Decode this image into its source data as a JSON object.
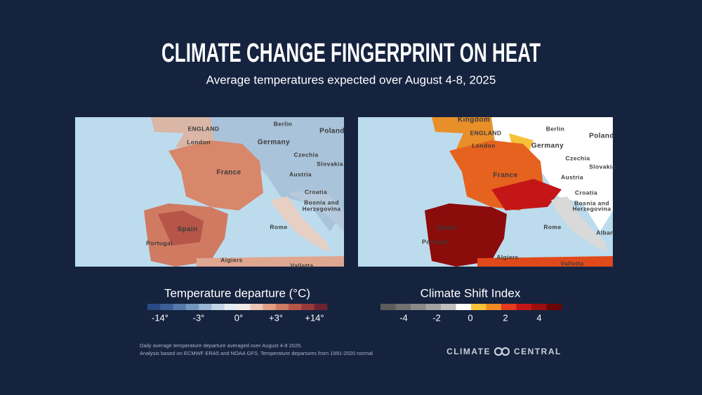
{
  "header": {
    "title": "CLIMATE CHANGE FINGERPRINT ON HEAT",
    "subtitle": "Average temperatures expected over August 4-8, 2025"
  },
  "maps": [
    {
      "labels": [
        "ENGLAND",
        "London",
        "Berlin",
        "Poland",
        "Germany",
        "Czechia",
        "Slovakia",
        "France",
        "Austria",
        "Croatia",
        "Bosnia and",
        "Herzegovina",
        "Spain",
        "Portugal",
        "Rome",
        "Algiers",
        "Valletta"
      ]
    },
    {
      "labels": [
        "Kingdom",
        "ENGLAND",
        "London",
        "Berlin",
        "Poland",
        "Germany",
        "Czechia",
        "Slovakia",
        "France",
        "Austria",
        "Croatia",
        "Bosnia and",
        "Herzegovina",
        "Spain",
        "Portugal",
        "Rome",
        "Algiers",
        "Alban",
        "Valletta"
      ]
    }
  ],
  "legends": [
    {
      "title": "Temperature departure (°C)",
      "colors": [
        "#2a4a86",
        "#3d5f98",
        "#5479ab",
        "#7396c0",
        "#9bb6d4",
        "#c2d4e6",
        "#e4ecf3",
        "#f3ebe6",
        "#ecc6b4",
        "#df9f86",
        "#cf7a62",
        "#b85549",
        "#983a3c",
        "#6e2330"
      ],
      "ticks": [
        "-14°",
        "-3°",
        "0°",
        "+3°",
        "+14°"
      ]
    },
    {
      "title": "Climate Shift Index",
      "colors": [
        "#5c5c5c",
        "#727272",
        "#8a8a8a",
        "#a3a3a3",
        "#bfbfbf",
        "#ffffff",
        "#f8c43a",
        "#f08a22",
        "#e43a1e",
        "#c41616",
        "#9c0d0d",
        "#6a0606"
      ],
      "ticks": [
        "-4",
        "-2",
        "0",
        "2",
        "4"
      ]
    }
  ],
  "footnote": [
    "Daily average temperature departure averaged over August 4-8 2025.",
    "Analysis based on ECMWF ERA5 and NOAA GFS. Temperature departures from 1991-2020 normal"
  ],
  "logo": {
    "left": "CLIMATE",
    "right": "CENTRAL"
  }
}
